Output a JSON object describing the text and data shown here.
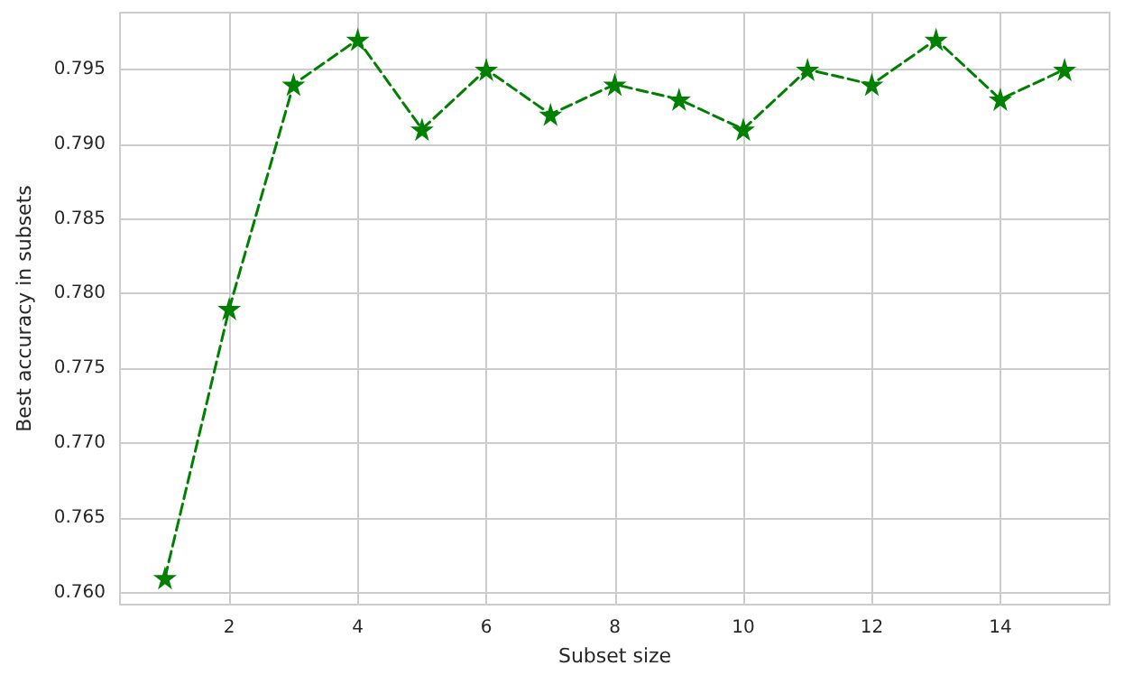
{
  "chart_data": {
    "type": "line",
    "xlabel": "Subset size",
    "ylabel": "Best accuracy in subsets",
    "x": [
      1,
      2,
      3,
      4,
      5,
      6,
      7,
      8,
      9,
      10,
      11,
      12,
      13,
      14,
      15
    ],
    "series": [
      {
        "color": "#008000",
        "values": [
          0.761,
          0.779,
          0.794,
          0.797,
          0.791,
          0.795,
          0.792,
          0.794,
          0.793,
          0.791,
          0.795,
          0.794,
          0.797,
          0.793,
          0.795
        ]
      }
    ],
    "xlim": [
      0.3,
      15.7
    ],
    "xticks": [
      2,
      4,
      6,
      8,
      10,
      12,
      14
    ],
    "ylim": [
      0.7592,
      0.7988
    ],
    "yticks": [
      {
        "value": 0.76,
        "label": "0.760"
      },
      {
        "value": 0.765,
        "label": "0.765"
      },
      {
        "value": 0.77,
        "label": "0.770"
      },
      {
        "value": 0.775,
        "label": "0.775"
      },
      {
        "value": 0.78,
        "label": "0.780"
      },
      {
        "value": 0.785,
        "label": "0.785"
      },
      {
        "value": 0.79,
        "label": "0.790"
      },
      {
        "value": 0.795,
        "label": "0.795"
      }
    ],
    "grid": true,
    "marker": "star",
    "line_style": "dashed"
  }
}
